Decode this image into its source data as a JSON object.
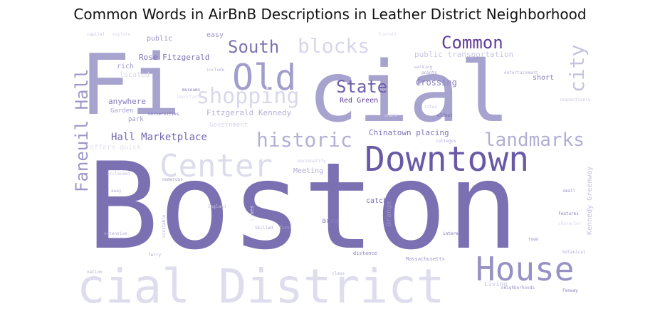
{
  "chart_data": {
    "type": "wordcloud",
    "title": "Common Words in AirBnB Descriptions in Leather District Neighborhood",
    "colormap": "purples",
    "background": "#ffffff",
    "words": [
      {
        "text": "Boston",
        "weight": 1.0,
        "color": "#7a70b2"
      },
      {
        "text": "Fi",
        "weight": 0.8,
        "color": "#a7a3cf"
      },
      {
        "text": "cial",
        "weight": 0.8,
        "color": "#a7a3cf"
      },
      {
        "text": "cial District",
        "weight": 0.62,
        "color": "#dedded"
      },
      {
        "text": "Downtown",
        "weight": 0.5,
        "color": "#6a5aa6"
      },
      {
        "text": "Center",
        "weight": 0.46,
        "color": "#dcdcec"
      },
      {
        "text": "House",
        "weight": 0.44,
        "color": "#9792c6"
      },
      {
        "text": "Old",
        "weight": 0.4,
        "color": "#a19dcc"
      },
      {
        "text": "city",
        "weight": 0.3,
        "color": "#c5c4e0"
      },
      {
        "text": "shopping",
        "weight": 0.28,
        "color": "#d9d8eb"
      },
      {
        "text": "historic",
        "weight": 0.27,
        "color": "#b3b0d7"
      },
      {
        "text": "landmarks",
        "weight": 0.26,
        "color": "#b2afd6"
      },
      {
        "text": "Faneuil Hall",
        "weight": 0.26,
        "color": "#9c97c8"
      },
      {
        "text": "blocks",
        "weight": 0.24,
        "color": "#d7d6ea"
      },
      {
        "text": "Common",
        "weight": 0.24,
        "color": "#5f3c99"
      },
      {
        "text": "South",
        "weight": 0.24,
        "color": "#7d71b3"
      },
      {
        "text": "State",
        "weight": 0.24,
        "color": "#6e5eaa"
      },
      {
        "text": "Hall Marketplace",
        "weight": 0.16,
        "color": "#7367ae"
      },
      {
        "text": "Crossing",
        "weight": 0.12,
        "color": "#8a7ebc"
      },
      {
        "text": "Chinatown placing",
        "weight": 0.1,
        "color": "#7f74b5"
      },
      {
        "text": "Rose Fitzgerald",
        "weight": 0.1,
        "color": "#7c6fb3"
      },
      {
        "text": "Fitzgerald Kennedy",
        "weight": 0.1,
        "color": "#b2afd5"
      },
      {
        "text": "public transportation",
        "weight": 0.09,
        "color": "#c9c7e2"
      },
      {
        "text": "anywhere",
        "weight": 0.09,
        "color": "#8679ba"
      },
      {
        "text": "Red Green",
        "weight": 0.09,
        "color": "#5f3c99"
      },
      {
        "text": "Kennedy Greenway",
        "weight": 0.08,
        "color": "#c4c2df"
      },
      {
        "text": "public",
        "weight": 0.08,
        "color": "#9a95c7"
      },
      {
        "text": "easy",
        "weight": 0.08,
        "color": "#9a95c7"
      },
      {
        "text": "short",
        "weight": 0.08,
        "color": "#8a80bb"
      },
      {
        "text": "rich",
        "weight": 0.08,
        "color": "#a29ecc"
      },
      {
        "text": "catch",
        "weight": 0.08,
        "color": "#7b6fb2"
      },
      {
        "text": "area",
        "weight": 0.08,
        "color": "#8a7ebc"
      },
      {
        "text": "Orange",
        "weight": 0.08,
        "color": "#9a93c6"
      },
      {
        "text": "Meeting",
        "weight": 0.08,
        "color": "#b3b0d6"
      },
      {
        "text": "Garden",
        "weight": 0.07,
        "color": "#a6a2cf"
      },
      {
        "text": "park",
        "weight": 0.07,
        "color": "#9c97c8"
      },
      {
        "text": "located",
        "weight": 0.07,
        "color": "#d9d8eb"
      },
      {
        "text": "Government",
        "weight": 0.06,
        "color": "#d6d5ea"
      },
      {
        "text": "offers quick",
        "weight": 0.07,
        "color": "#e3e2f0"
      },
      {
        "text": "Living",
        "weight": 0.06,
        "color": "#c4c2df"
      },
      {
        "text": "distance",
        "weight": 0.05,
        "color": "#8a7ebc"
      },
      {
        "text": "Massachusetts",
        "weight": 0.05,
        "color": "#9c97c8"
      },
      {
        "text": "oldest",
        "weight": 0.05,
        "color": "#6a5aa6"
      },
      {
        "text": "universities",
        "weight": 0.05,
        "color": "#7d71b3"
      },
      {
        "text": "capital",
        "weight": 0.04,
        "color": "#c9c7e2"
      },
      {
        "text": "explore",
        "weight": 0.04,
        "color": "#d9d8eb"
      },
      {
        "text": "Everett",
        "weight": 0.04,
        "color": "#d9d8eb"
      },
      {
        "text": "walking",
        "weight": 0.04,
        "color": "#b0add4"
      },
      {
        "text": "points",
        "weight": 0.04,
        "color": "#9c97c8"
      },
      {
        "text": "entertainment",
        "weight": 0.04,
        "color": "#b3b0d6"
      },
      {
        "text": "respectively",
        "weight": 0.04,
        "color": "#c5c4e0"
      },
      {
        "text": "include",
        "weight": 0.04,
        "color": "#b3b0d6"
      },
      {
        "text": "museums",
        "weight": 0.04,
        "color": "#8a7ebc"
      },
      {
        "text": "important",
        "weight": 0.04,
        "color": "#dcdcec"
      },
      {
        "text": "share",
        "weight": 0.04,
        "color": "#d6d5ea"
      },
      {
        "text": "sites",
        "weight": 0.04,
        "color": "#c9c7e2"
      },
      {
        "text": "colleges",
        "weight": 0.04,
        "color": "#b3b0d6"
      },
      {
        "text": "personality",
        "weight": 0.04,
        "color": "#c9c7e2"
      },
      {
        "text": "numerous",
        "weight": 0.04,
        "color": "#9a93c6"
      },
      {
        "text": "acclaimed",
        "weight": 0.04,
        "color": "#c5c4e0"
      },
      {
        "text": "away",
        "weight": 0.04,
        "color": "#b3b0d6"
      },
      {
        "text": "England",
        "weight": 0.04,
        "color": "#c9c7e2"
      },
      {
        "text": "extensive",
        "weight": 0.04,
        "color": "#b0add4"
      },
      {
        "text": "visitable",
        "weight": 0.04,
        "color": "#b0add4"
      },
      {
        "text": "Lines",
        "weight": 0.04,
        "color": "#d6d5ea"
      },
      {
        "text": "Skilled",
        "weight": 0.04,
        "color": "#b3b0d6"
      },
      {
        "text": "first",
        "weight": 0.04,
        "color": "#b3b0d6"
      },
      {
        "text": "interest",
        "weight": 0.04,
        "color": "#7b6fb2"
      },
      {
        "text": "features",
        "weight": 0.04,
        "color": "#8a7ebc"
      },
      {
        "text": "character",
        "weight": 0.04,
        "color": "#d6d5ea"
      },
      {
        "text": "small",
        "weight": 0.04,
        "color": "#9a93c6"
      },
      {
        "text": "town",
        "weight": 0.04,
        "color": "#9a93c6"
      },
      {
        "text": "botanical",
        "weight": 0.04,
        "color": "#b0add4"
      },
      {
        "text": "ferry",
        "weight": 0.04,
        "color": "#b0add4"
      },
      {
        "text": "nation",
        "weight": 0.04,
        "color": "#b0add4"
      },
      {
        "text": "class",
        "weight": 0.04,
        "color": "#b3b0d6"
      },
      {
        "text": "neighborhoods",
        "weight": 0.04,
        "color": "#9a93c6"
      },
      {
        "text": "Fenway",
        "weight": 0.04,
        "color": "#8a7ebc"
      }
    ]
  }
}
